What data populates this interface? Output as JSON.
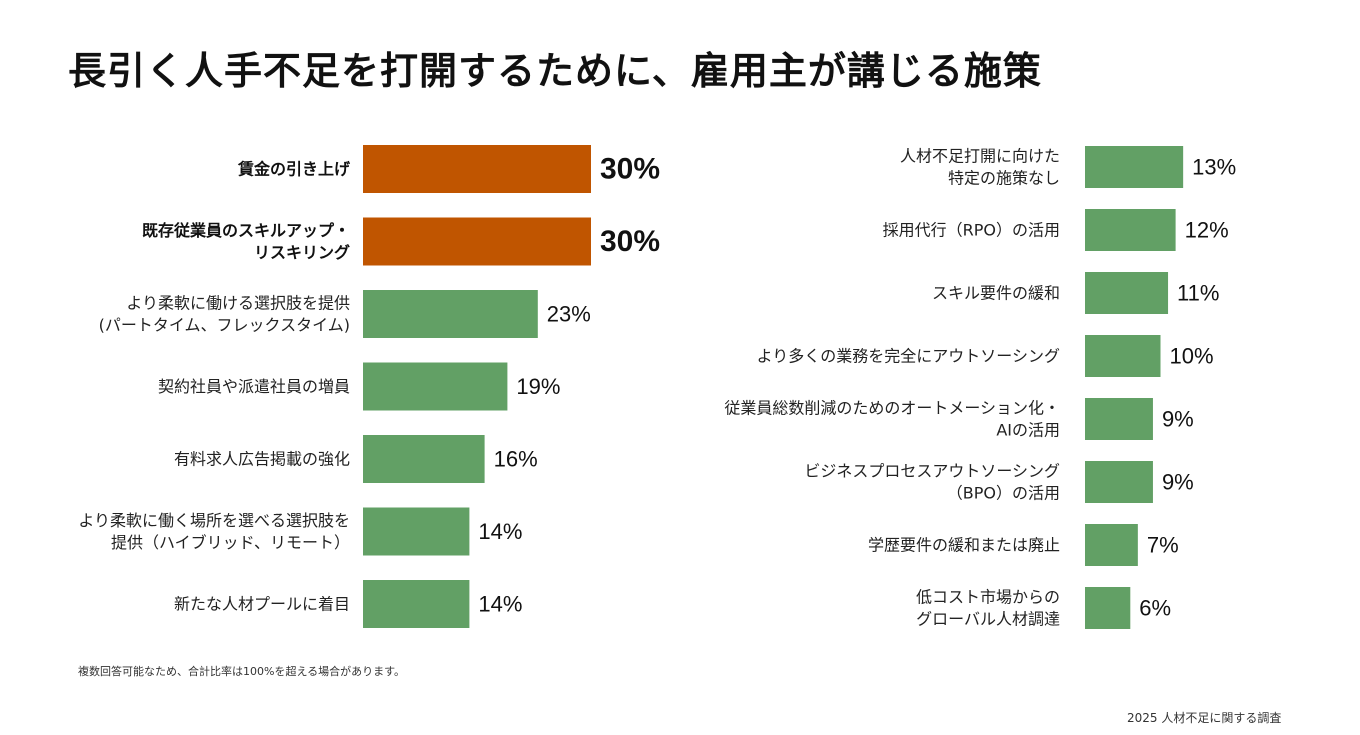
{
  "title": "長引く人手不足を打開するために、雇用主が講じる施策",
  "note": "複数回答可能なため、合計比率は100%を超える場合があります。",
  "source": "2025 人材不足に関する調査",
  "colors": {
    "highlight": "#C05500",
    "default": "#62A065"
  },
  "chart_data": [
    {
      "type": "bar",
      "orientation": "horizontal",
      "unit": "%",
      "xlim": [
        0,
        30
      ],
      "categories": [
        "賃金の引き上げ",
        "既存従業員のスキルアップ・\nリスキリング",
        "より柔軟に働ける選択肢を提供\n(パートタイム、フレックスタイム)",
        "契約社員や派遣社員の増員",
        "有料求人広告掲載の強化",
        "より柔軟に働く場所を選べる選択肢を\n提供（ハイブリッド、リモート）",
        "新たな人材プールに着目"
      ],
      "values": [
        30,
        30,
        23,
        19,
        16,
        14,
        14
      ],
      "value_labels": [
        "30%",
        "30%",
        "23%",
        "19%",
        "16%",
        "14%",
        "14%"
      ],
      "highlighted": [
        true,
        true,
        false,
        false,
        false,
        false,
        false
      ]
    },
    {
      "type": "bar",
      "orientation": "horizontal",
      "unit": "%",
      "xlim": [
        0,
        30
      ],
      "categories": [
        "人材不足打開に向けた\n特定の施策なし",
        "採用代行（RPO）の活用",
        "スキル要件の緩和",
        "より多くの業務を完全にアウトソーシング",
        "従業員総数削減のためのオートメーション化・\nAIの活用",
        "ビジネスプロセスアウトソーシング\n（BPO）の活用",
        "学歴要件の緩和または廃止",
        "低コスト市場からの\nグローバル人材調達"
      ],
      "values": [
        13,
        12,
        11,
        10,
        9,
        9,
        7,
        6
      ],
      "value_labels": [
        "13%",
        "12%",
        "11%",
        "10%",
        "9%",
        "9%",
        "7%",
        "6%"
      ],
      "highlighted": [
        false,
        false,
        false,
        false,
        false,
        false,
        false,
        false
      ]
    }
  ]
}
